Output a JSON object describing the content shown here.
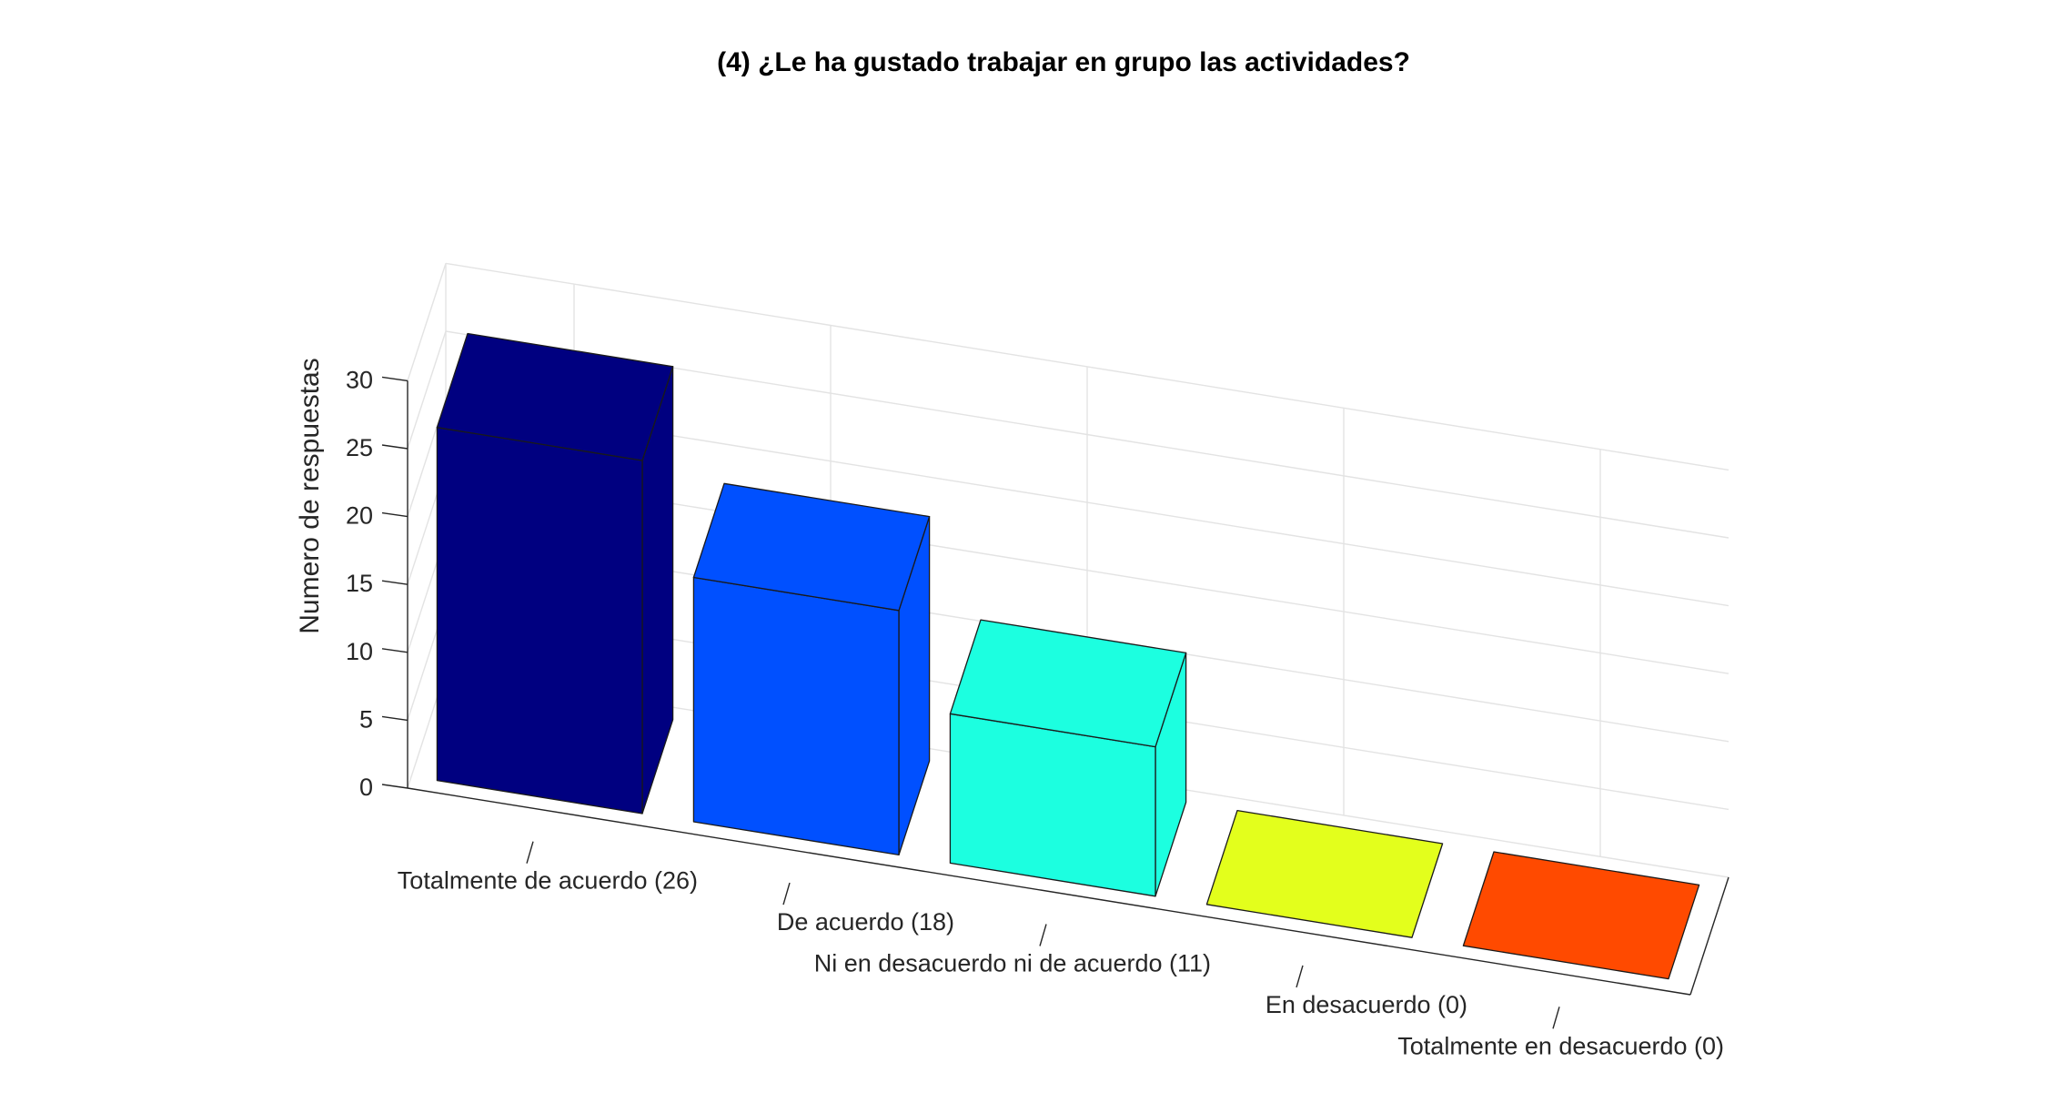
{
  "chart_data": {
    "type": "bar",
    "title": "(4) ¿Le ha gustado trabajar en grupo las actividades?",
    "xlabel": "",
    "ylabel": "Numero de respuestas",
    "categories": [
      "Totalmente de acuerdo (26)",
      "De acuerdo (18)",
      "Ni en desacuerdo ni de acuerdo (11)",
      "En desacuerdo (0)",
      "Totalmente en desacuerdo (0)"
    ],
    "values": [
      26,
      18,
      11,
      0,
      0
    ],
    "colors": [
      "#000080",
      "#0050ff",
      "#1cffe0",
      "#e3ff1c",
      "#ff4a00"
    ],
    "ylim": [
      0,
      30
    ],
    "yticks": [
      "0",
      "5",
      "10",
      "15",
      "20",
      "25",
      "30"
    ],
    "grid": true,
    "projection": "3d"
  }
}
